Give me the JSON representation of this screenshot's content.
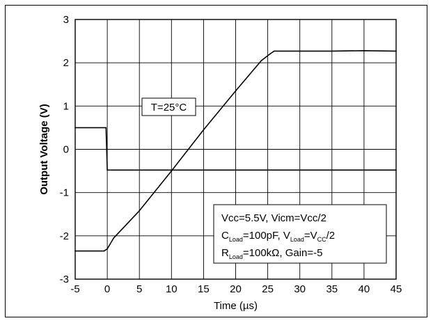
{
  "chart_data": {
    "type": "line",
    "xlabel": "Time (µs)",
    "ylabel": "Output Voltage (V)",
    "xlim": [
      -5,
      45
    ],
    "ylim": [
      -3,
      3
    ],
    "xticks": [
      -5,
      0,
      5,
      10,
      15,
      20,
      25,
      30,
      35,
      40,
      45
    ],
    "yticks": [
      -3,
      -2,
      -1,
      0,
      1,
      2,
      3
    ],
    "xtick_labels": [
      "-5",
      "0",
      "5",
      "10",
      "15",
      "20",
      "25",
      "30",
      "35",
      "40",
      "45"
    ],
    "ytick_labels": [
      "-3",
      "-2",
      "-1",
      "0",
      "1",
      "2",
      "3"
    ],
    "grid": true,
    "series": [
      {
        "color": "#000000",
        "x": [
          -5,
          -0.2,
          0,
          45
        ],
        "y": [
          0.5,
          0.5,
          -0.48,
          -0.48
        ]
      },
      {
        "color": "#000000",
        "x": [
          -5,
          -0.5,
          0,
          1,
          5,
          10,
          15,
          20,
          24,
          25.5,
          26,
          30,
          35,
          40,
          45
        ],
        "y": [
          -2.35,
          -2.35,
          -2.3,
          -2.05,
          -1.42,
          -0.5,
          0.45,
          1.35,
          2.05,
          2.22,
          2.27,
          2.27,
          2.27,
          2.28,
          2.27
        ]
      }
    ],
    "annotations": {
      "temp": "T=25°C",
      "cond_line1": "Vcc=5.5V, Vicm=Vcc/2",
      "cond_line2": {
        "a": "C",
        "a_sub": "Load",
        "b": "=100pF, V",
        "b_sub": "Load",
        "c": "=V",
        "c_sub": "CC",
        "d": "/2"
      },
      "cond_line3": {
        "a": "R",
        "a_sub": "Load",
        "b": "=100kΩ, Gain=-5"
      }
    }
  }
}
